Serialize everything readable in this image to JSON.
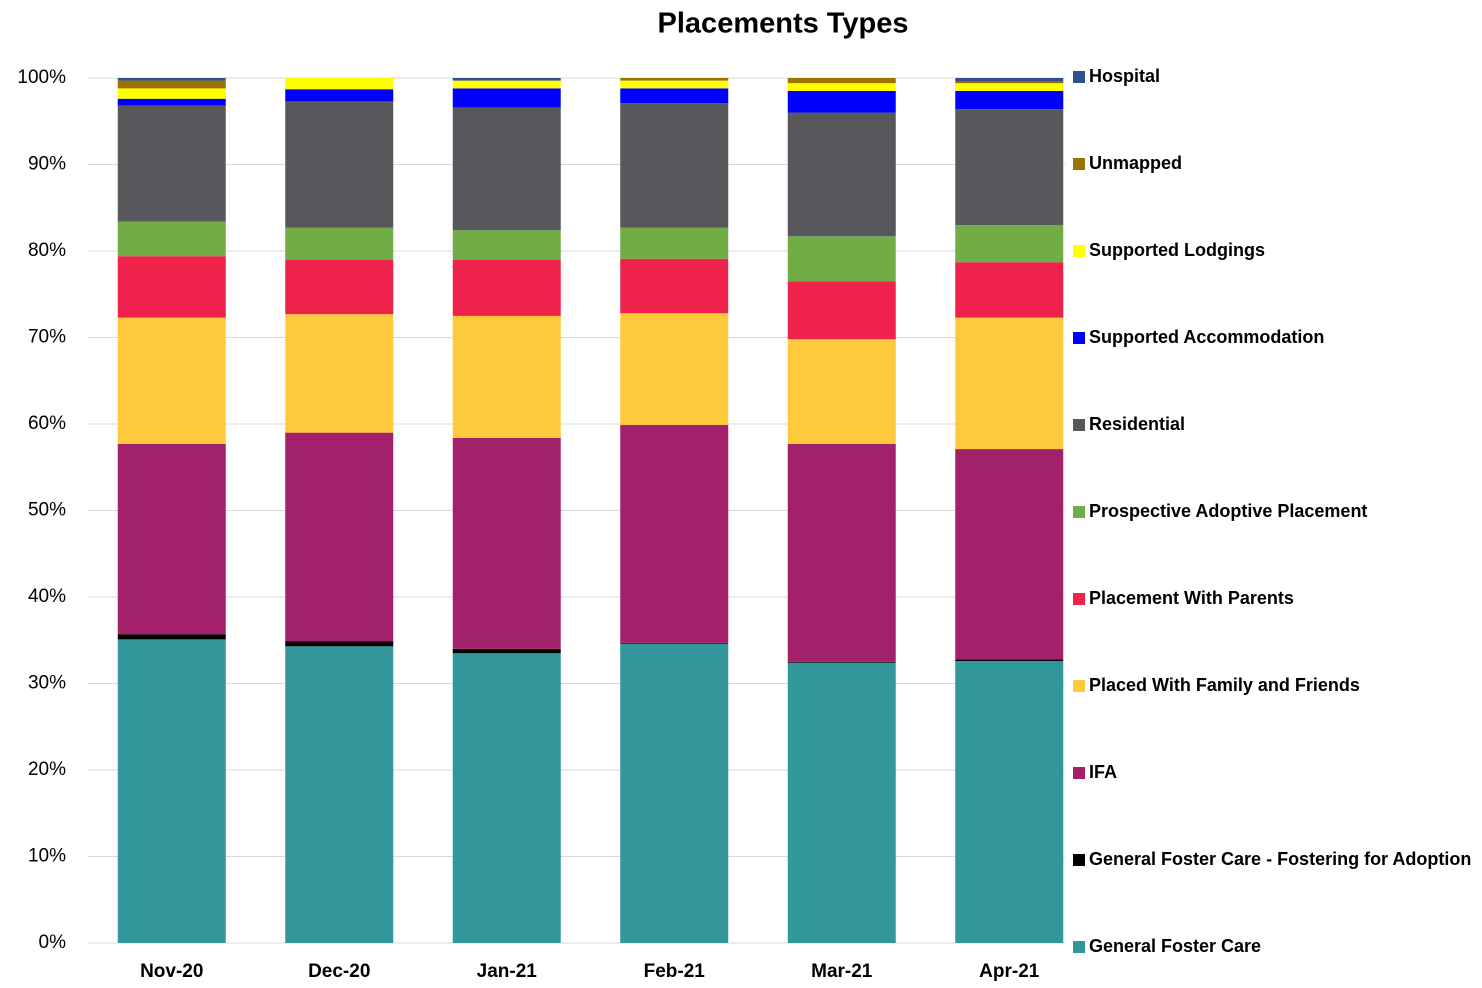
{
  "chart_data": {
    "type": "stacked_bar",
    "title": "Placements Types",
    "categories": [
      "Nov-20",
      "Dec-20",
      "Jan-21",
      "Feb-21",
      "Mar-21",
      "Apr-21"
    ],
    "series": [
      {
        "name": "General Foster Care",
        "color": "#31979b",
        "values": [
          35.1,
          34.3,
          33.5,
          34.6,
          32.4,
          32.6
        ]
      },
      {
        "name": "General Foster Care - Fostering for Adoption",
        "color": "#000000",
        "values": [
          0.6,
          0.6,
          0.5,
          0.1,
          0.1,
          0.2
        ]
      },
      {
        "name": "IFA",
        "color": "#a3206a",
        "values": [
          22.0,
          24.1,
          24.4,
          25.2,
          25.2,
          24.3
        ]
      },
      {
        "name": "Placed With Family and Friends",
        "color": "#fec93a",
        "values": [
          14.6,
          13.7,
          14.1,
          12.9,
          12.1,
          15.2
        ]
      },
      {
        "name": "Placement With Parents",
        "color": "#ee224a",
        "values": [
          7.1,
          6.3,
          6.5,
          6.3,
          6.7,
          6.4
        ]
      },
      {
        "name": "Prospective Adoptive Placement",
        "color": "#70ad47",
        "values": [
          4.0,
          3.7,
          3.4,
          3.6,
          5.2,
          4.3
        ]
      },
      {
        "name": "Residential",
        "color": "#58575c",
        "values": [
          13.4,
          14.6,
          14.2,
          14.4,
          14.3,
          13.4
        ]
      },
      {
        "name": "Supported Accommodation",
        "color": "#0000ff",
        "values": [
          0.8,
          1.4,
          2.2,
          1.7,
          2.5,
          2.1
        ]
      },
      {
        "name": "Supported Lodgings",
        "color": "#ffff00",
        "values": [
          1.2,
          1.3,
          0.9,
          0.9,
          0.9,
          0.9
        ]
      },
      {
        "name": "Unmapped",
        "color": "#9c7200",
        "values": [
          0.9,
          0,
          0,
          0.3,
          0.6,
          0.2
        ]
      },
      {
        "name": "Hospital",
        "color": "#2f4f8f",
        "values": [
          0.3,
          0,
          0.3,
          0,
          0,
          0.4
        ]
      }
    ],
    "ylim": [
      0,
      100
    ],
    "yticks": [
      {
        "value": 0,
        "label": "0%"
      },
      {
        "value": 10,
        "label": "10%"
      },
      {
        "value": 20,
        "label": "20%"
      },
      {
        "value": 30,
        "label": "30%"
      },
      {
        "value": 40,
        "label": "40%"
      },
      {
        "value": 50,
        "label": "50%"
      },
      {
        "value": 60,
        "label": "60%"
      },
      {
        "value": 70,
        "label": "70%"
      },
      {
        "value": 80,
        "label": "80%"
      },
      {
        "value": 90,
        "label": "90%"
      },
      {
        "value": 100,
        "label": "100%"
      }
    ],
    "grid": true,
    "legend": "right"
  }
}
